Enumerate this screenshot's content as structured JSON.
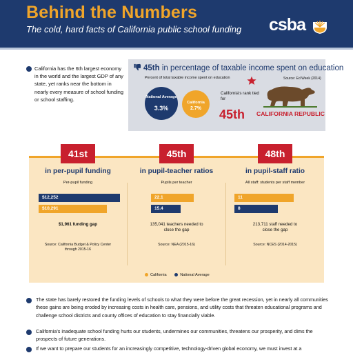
{
  "header": {
    "title": "Behind the Numbers",
    "subtitle": "The cold, hard facts of California public school funding",
    "logo_text": "csba"
  },
  "intro": "California has the 6th largest economy in the world and the largest GDP of any state, yet ranks near the bottom in nearly every measure of school funding or school staffing.",
  "ranking": {
    "headline_rank": "45th",
    "headline_rest": " in percentage of taxable income spent on education",
    "subtitle": "Percent of total taxable income spent on education",
    "source": "Source: Ed Week (2014)",
    "national_label": "National Average",
    "national_value": "3.3%",
    "california_label": "California",
    "california_value": "2.7%",
    "tie_text": "California's rank tied for",
    "rank": "45th",
    "flag_text": "CALIFORNIA REPUBLIC"
  },
  "panels": [
    {
      "rank": "41st",
      "title": "in per-pupil funding",
      "subtitle": "Per-pupil funding",
      "bars": [
        {
          "label": "$12,252",
          "series": "National Average",
          "value": 12252
        },
        {
          "label": "$10,291",
          "series": "California",
          "value": 10291
        }
      ],
      "note": "$1,961 funding gap",
      "source": "Source: California Budget & Policy Center through 2015-16"
    },
    {
      "rank": "45th",
      "title": "in pupil-teacher ratios",
      "subtitle": "Pupils per teacher",
      "bars": [
        {
          "label": "22.1",
          "series": "California",
          "value": 22.1
        },
        {
          "label": "15.4",
          "series": "National Average",
          "value": 15.4
        }
      ],
      "note": "135,041 teachers needed to close the gap",
      "source": "Source: NEA (2015-16)"
    },
    {
      "rank": "48th",
      "title": "in pupil-staff ratio",
      "subtitle": "All staff: students per staff member",
      "bars": [
        {
          "label": "11",
          "series": "California",
          "value": 11
        },
        {
          "label": "8",
          "series": "National Average",
          "value": 8
        }
      ],
      "note": "213,711 staff needed to close the gap",
      "source": "Source: NCES (2014-2015)"
    }
  ],
  "legend": {
    "california": "California",
    "national": "National Average"
  },
  "paragraphs": [
    "The state has barely restored the funding levels of schools to what they were before the great recession, yet in nearly all communities these gains are being eroded by increasing costs in health care, pensions, and utility costs that threaten educational programs and challenge school districts and county offices of education to stay financially viable.",
    "California's inadequate school funding hurts our students, undermines our communities, threatens our prosperity, and dims the prospects of future generations.",
    "If we want to prepare our students for an increasingly competitive, technology-driven global economy, we must invest at a"
  ],
  "colors": {
    "navy": "#1e3a6e",
    "orange": "#f0a52a",
    "red": "#c8202e",
    "panel_bg": "#fbe6c2",
    "rank_box_bg": "#d9dce3"
  }
}
